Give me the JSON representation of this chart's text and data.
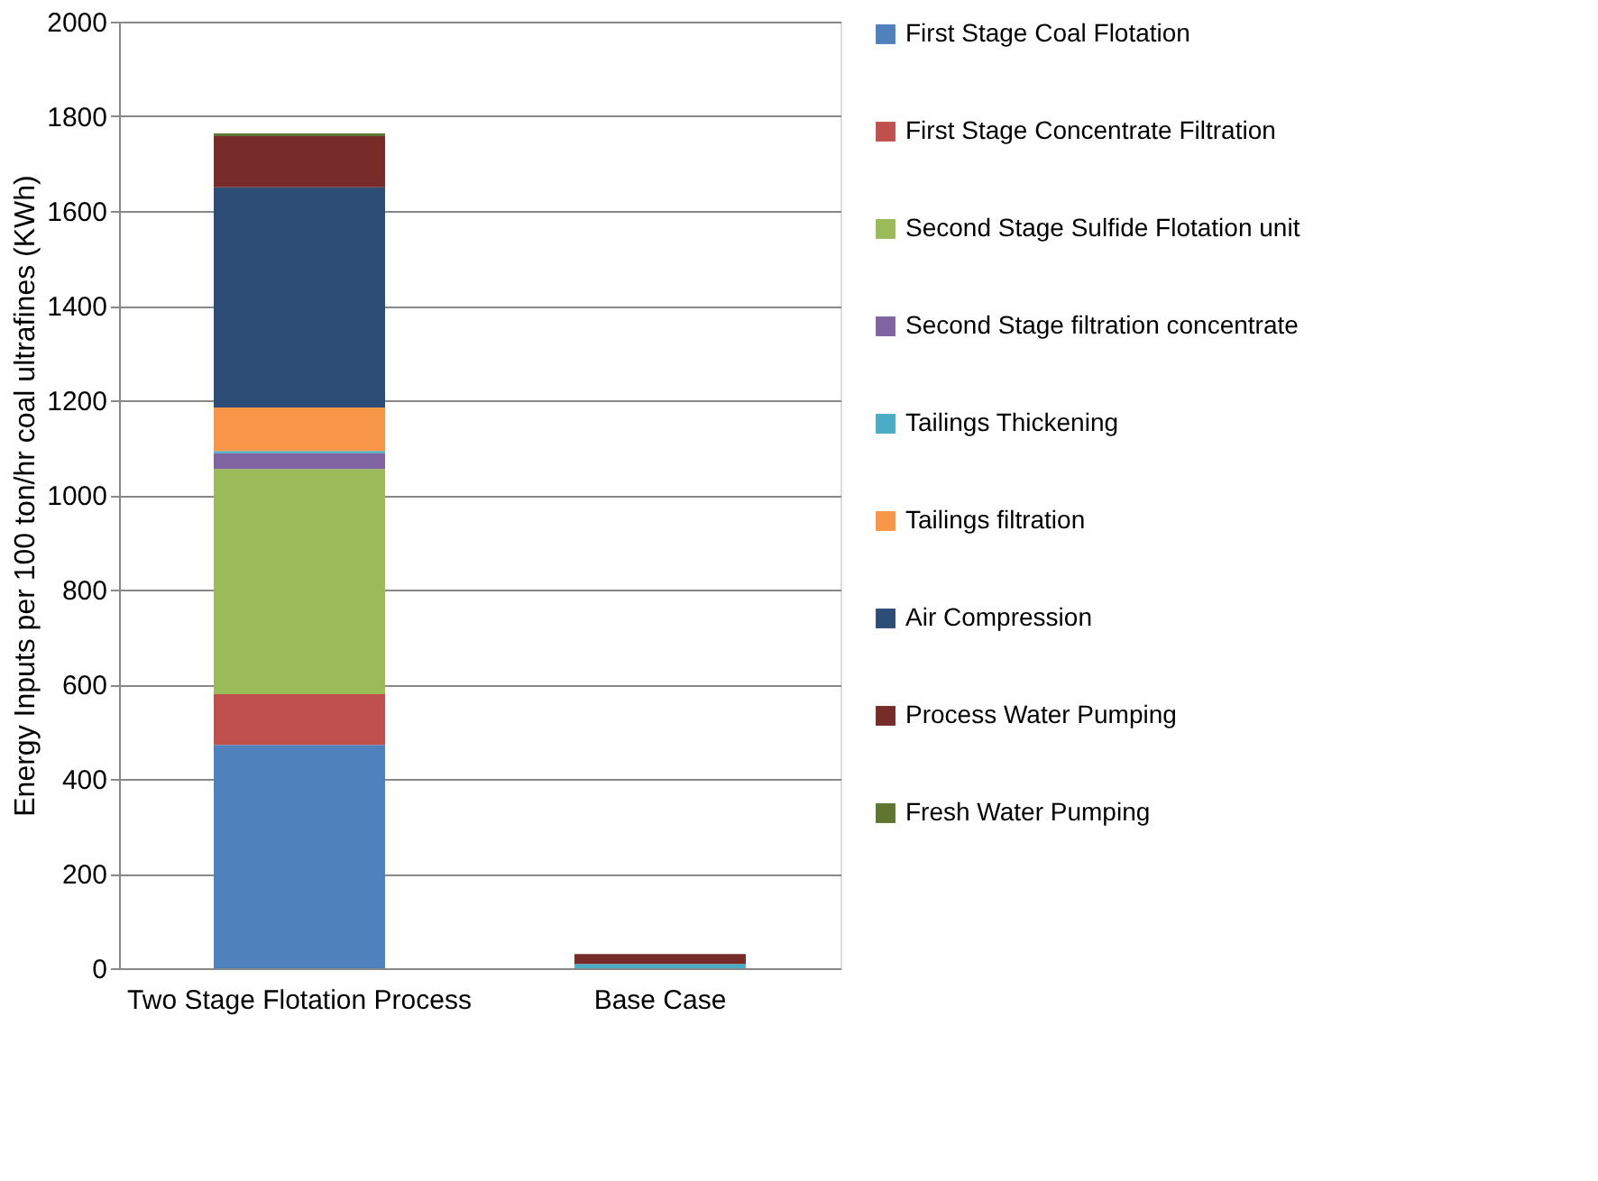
{
  "chart_data": {
    "type": "bar",
    "stacked": true,
    "ylabel": "Energy Inputs per 100 ton/hr coal ultrafines (KWh)",
    "categories": [
      "Two Stage Flotation Process",
      "Base Case"
    ],
    "series": [
      {
        "name": "First Stage Coal Flotation",
        "color": "#4f81bd",
        "values": [
          472,
          0
        ]
      },
      {
        "name": "First Stage Concentrate Filtration",
        "color": "#c0504d",
        "values": [
          107,
          0
        ]
      },
      {
        "name": "Second Stage Sulfide Flotation unit",
        "color": "#9bbb59",
        "values": [
          476,
          0
        ]
      },
      {
        "name": "Second Stage filtration concentrate",
        "color": "#8064a2",
        "values": [
          33,
          0
        ]
      },
      {
        "name": "Tailings Thickening",
        "color": "#4bacc6",
        "values": [
          5,
          9
        ]
      },
      {
        "name": "Tailings filtration",
        "color": "#f79646",
        "values": [
          92,
          0
        ]
      },
      {
        "name": "Air Compression",
        "color": "#2c4d75",
        "values": [
          465,
          0
        ]
      },
      {
        "name": "Process Water Pumping",
        "color": "#772c2a",
        "values": [
          108,
          21
        ]
      },
      {
        "name": "Fresh Water Pumping",
        "color": "#5f7530",
        "values": [
          6,
          0
        ]
      }
    ],
    "ylim": [
      0,
      2000
    ],
    "yticks": [
      0,
      200,
      400,
      600,
      800,
      1000,
      1200,
      1400,
      1600,
      1800,
      2000
    ],
    "grid": "y",
    "legend": "right"
  }
}
